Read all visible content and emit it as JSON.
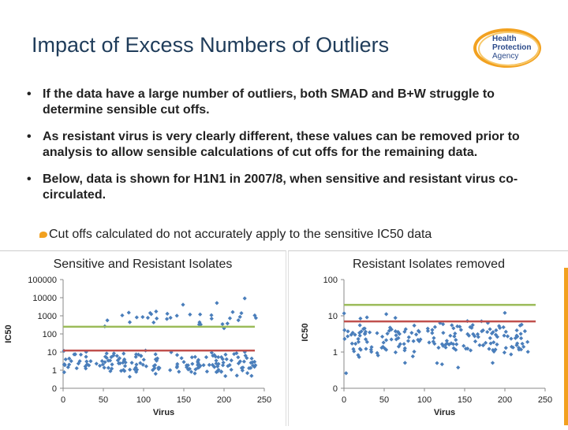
{
  "slide": {
    "title": "Impact of Excess Numbers of Outliers",
    "logo": {
      "line1": "Health",
      "line2": "Protection",
      "line3": "Agency"
    },
    "bullets": [
      "If the data have a large number of outliers, both SMAD and B+W struggle to determine sensible cut offs.",
      "As resistant virus is very clearly different, these values can be removed prior to analysis to allow sensible calculations of cut offs for the remaining data.",
      "Below, data is shown for H1N1 in 2007/8, when sensitive and resistant virus co-circulated."
    ],
    "bullet_glyph": "•",
    "sub_bullet": "Cut offs calculated do not accurately apply to the sensitive IC50 data",
    "colors": {
      "accent": "#f2a11f",
      "title": "#1f3c5a",
      "point": "#4a7ebb",
      "red_line": "#c0504d",
      "green_line": "#9bbb59"
    }
  },
  "chart_data": [
    {
      "type": "scatter",
      "title": "Sensitive and Resistant Isolates",
      "xlabel": "Virus",
      "ylabel": "IC50",
      "x_ticks": [
        "0",
        "50",
        "100",
        "150",
        "200",
        "250"
      ],
      "y_ticks": [
        "0",
        "1",
        "10",
        "100",
        "1000",
        "10000",
        "100000"
      ],
      "xlim": [
        0,
        250
      ],
      "y_scale": "log",
      "cutoff_lines": [
        {
          "color": "red",
          "value": 12
        },
        {
          "color": "green",
          "value": 250
        }
      ],
      "clusters": [
        {
          "x_range": [
            0,
            240
          ],
          "y_center": 2.5,
          "spread_decades": 0.45,
          "count": 170
        },
        {
          "x_range": [
            50,
            240
          ],
          "y_center": 900,
          "spread_decades": 0.5,
          "count": 38
        }
      ]
    },
    {
      "type": "scatter",
      "title": "Resistant Isolates removed",
      "xlabel": "Virus",
      "ylabel": "IC50",
      "x_ticks": [
        "0",
        "50",
        "100",
        "150",
        "200",
        "250"
      ],
      "y_ticks": [
        "0",
        "1",
        "10",
        "100"
      ],
      "xlim": [
        0,
        250
      ],
      "y_scale": "log",
      "cutoff_lines": [
        {
          "color": "red",
          "value": 7
        },
        {
          "color": "green",
          "value": 20
        }
      ],
      "clusters": [
        {
          "x_range": [
            0,
            235
          ],
          "y_center": 2.2,
          "spread_decades": 0.38,
          "count": 190
        }
      ]
    }
  ]
}
